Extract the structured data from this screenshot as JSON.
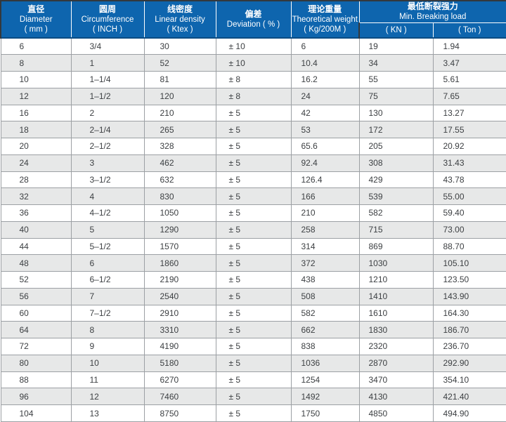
{
  "colors": {
    "header_bg": "#0e65ae",
    "header_edge": "#0c4c83",
    "outer_border": "#33383d",
    "grid_border": "#9ca0a4",
    "alt_row_bg": "#e7e8e8",
    "header_text": "#ffffff",
    "data_text": "#3d4043"
  },
  "table": {
    "columns": [
      {
        "zh": "直径",
        "en": "Diameter",
        "unit": "( mm )"
      },
      {
        "zh": "圆周",
        "en": "Circumference",
        "unit": "( INCH )"
      },
      {
        "zh": "线密度",
        "en": "Linear density",
        "unit": "( Ktex )"
      },
      {
        "zh": "偏差",
        "en": "Deviation ( % )",
        "unit": ""
      },
      {
        "zh": "理论重量",
        "en": "Theoretical weight",
        "unit": "( Kg/200M )"
      },
      {
        "zh": "最低断裂强力",
        "en": "Min. Breaking load",
        "sub": [
          "( KN )",
          "( Ton )"
        ]
      }
    ],
    "rows": [
      [
        "6",
        "3/4",
        "30",
        "± 10",
        "6",
        "19",
        "1.94"
      ],
      [
        "8",
        "1",
        "52",
        "± 10",
        "10.4",
        "34",
        "3.47"
      ],
      [
        "10",
        "1–1/4",
        "81",
        "± 8",
        "16.2",
        "55",
        "5.61"
      ],
      [
        "12",
        "1–1/2",
        "120",
        "± 8",
        "24",
        "75",
        "7.65"
      ],
      [
        "16",
        "2",
        "210",
        "± 5",
        "42",
        "130",
        "13.27"
      ],
      [
        "18",
        "2–1/4",
        "265",
        "± 5",
        "53",
        "172",
        "17.55"
      ],
      [
        "20",
        "2–1/2",
        "328",
        "± 5",
        "65.6",
        "205",
        "20.92"
      ],
      [
        "24",
        "3",
        "462",
        "± 5",
        "92.4",
        "308",
        "31.43"
      ],
      [
        "28",
        "3–1/2",
        "632",
        "± 5",
        "126.4",
        "429",
        "43.78"
      ],
      [
        "32",
        "4",
        "830",
        "± 5",
        "166",
        "539",
        "55.00"
      ],
      [
        "36",
        "4–1/2",
        "1050",
        "± 5",
        "210",
        "582",
        "59.40"
      ],
      [
        "40",
        "5",
        "1290",
        "± 5",
        "258",
        "715",
        "73.00"
      ],
      [
        "44",
        "5–1/2",
        "1570",
        "± 5",
        "314",
        "869",
        "88.70"
      ],
      [
        "48",
        "6",
        "1860",
        "± 5",
        "372",
        "1030",
        "105.10"
      ],
      [
        "52",
        "6–1/2",
        "2190",
        "± 5",
        "438",
        "1210",
        "123.50"
      ],
      [
        "56",
        "7",
        "2540",
        "± 5",
        "508",
        "1410",
        "143.90"
      ],
      [
        "60",
        "7–1/2",
        "2910",
        "± 5",
        "582",
        "1610",
        "164.30"
      ],
      [
        "64",
        "8",
        "3310",
        "± 5",
        "662",
        "1830",
        "186.70"
      ],
      [
        "72",
        "9",
        "4190",
        "± 5",
        "838",
        "2320",
        "236.70"
      ],
      [
        "80",
        "10",
        "5180",
        "± 5",
        "1036",
        "2870",
        "292.90"
      ],
      [
        "88",
        "11",
        "6270",
        "± 5",
        "1254",
        "3470",
        "354.10"
      ],
      [
        "96",
        "12",
        "7460",
        "± 5",
        "1492",
        "4130",
        "421.40"
      ],
      [
        "104",
        "13",
        "8750",
        "± 5",
        "1750",
        "4850",
        "494.90"
      ]
    ],
    "column_keys": [
      "diameter-mm",
      "circumference-inch",
      "linear-density-ktex",
      "deviation-pct",
      "theoretical-weight",
      "breaking-load-kn",
      "breaking-load-ton"
    ]
  }
}
